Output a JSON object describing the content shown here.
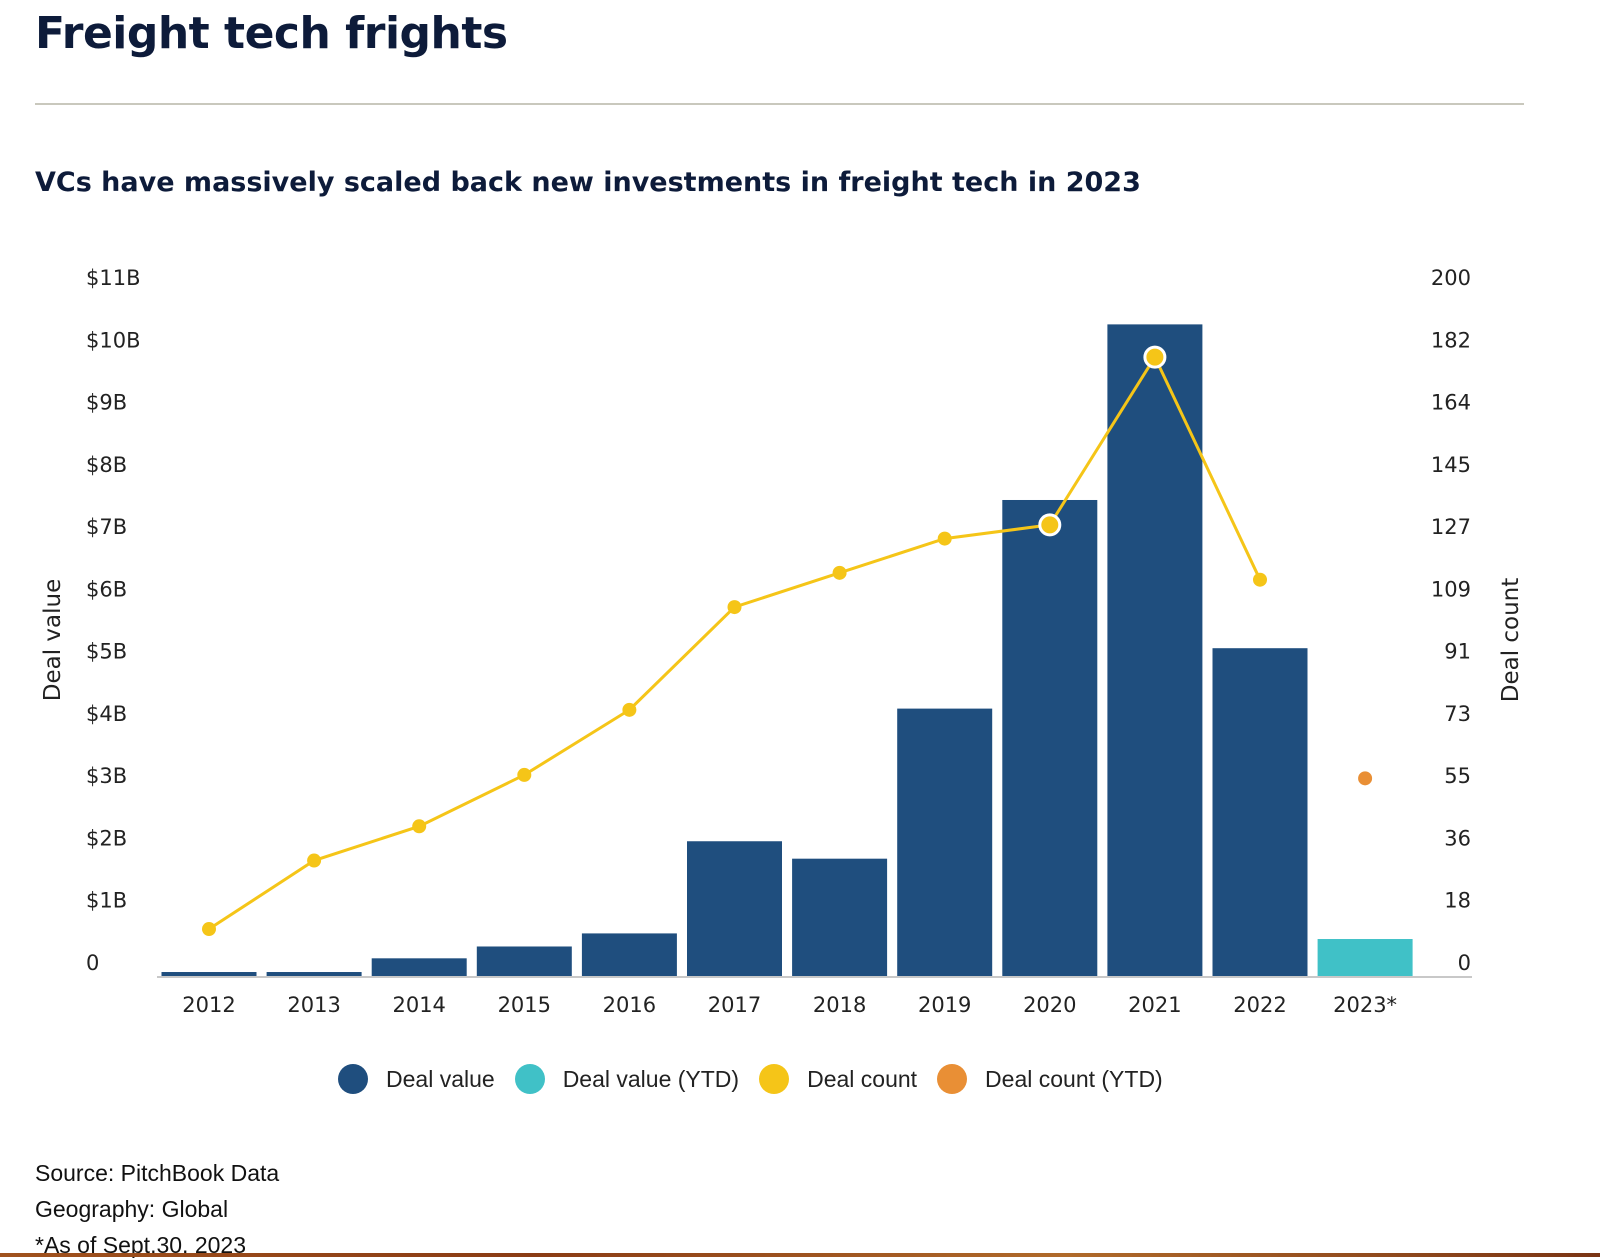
{
  "header": {
    "title": "Freight tech frights",
    "subtitle": "VCs have massively scaled back new investments in freight tech in 2023"
  },
  "chart_data": {
    "type": "bar+line",
    "categories": [
      "2012",
      "2013",
      "2014",
      "2015",
      "2016",
      "2017",
      "2018",
      "2019",
      "2020",
      "2021",
      "2022",
      "2023*"
    ],
    "series": [
      {
        "name": "Deal value",
        "kind": "bar",
        "axis": "left",
        "color": "#1f4e7e",
        "values": [
          0.08,
          0.08,
          0.3,
          0.49,
          0.7,
          2.18,
          1.9,
          4.31,
          7.66,
          10.48,
          5.28,
          null
        ]
      },
      {
        "name": "Deal value (YTD)",
        "kind": "bar",
        "axis": "left",
        "color": "#40c1c7",
        "values": [
          null,
          null,
          null,
          null,
          null,
          null,
          null,
          null,
          null,
          null,
          null,
          0.61
        ]
      },
      {
        "name": "Deal count",
        "kind": "line",
        "axis": "right",
        "color": "#f5c518",
        "values": [
          14,
          34,
          44,
          59,
          78,
          108,
          118,
          128,
          132,
          181,
          116,
          null
        ]
      },
      {
        "name": "Deal count (YTD)",
        "kind": "point",
        "axis": "right",
        "color": "#e98f35",
        "values": [
          null,
          null,
          null,
          null,
          null,
          null,
          null,
          null,
          null,
          null,
          null,
          58
        ]
      }
    ],
    "ylabel": "Deal value",
    "y2label": "Deal count",
    "ylim": [
      0,
      11
    ],
    "y2lim": [
      0,
      200
    ],
    "yticks": [
      "0",
      "$1B",
      "$2B",
      "$3B",
      "$4B",
      "$5B",
      "$6B",
      "$7B",
      "$8B",
      "$9B",
      "$10B",
      "$11B"
    ],
    "y2ticks": [
      "0",
      "18",
      "36",
      "55",
      "73",
      "91",
      "109",
      "127",
      "145",
      "164",
      "182",
      "200"
    ],
    "grid": false,
    "legend_position": "bottom"
  },
  "footer": {
    "source": "Source: PitchBook Data",
    "geography": "Geography: Global",
    "note": "*As of Sept.30, 2023"
  }
}
